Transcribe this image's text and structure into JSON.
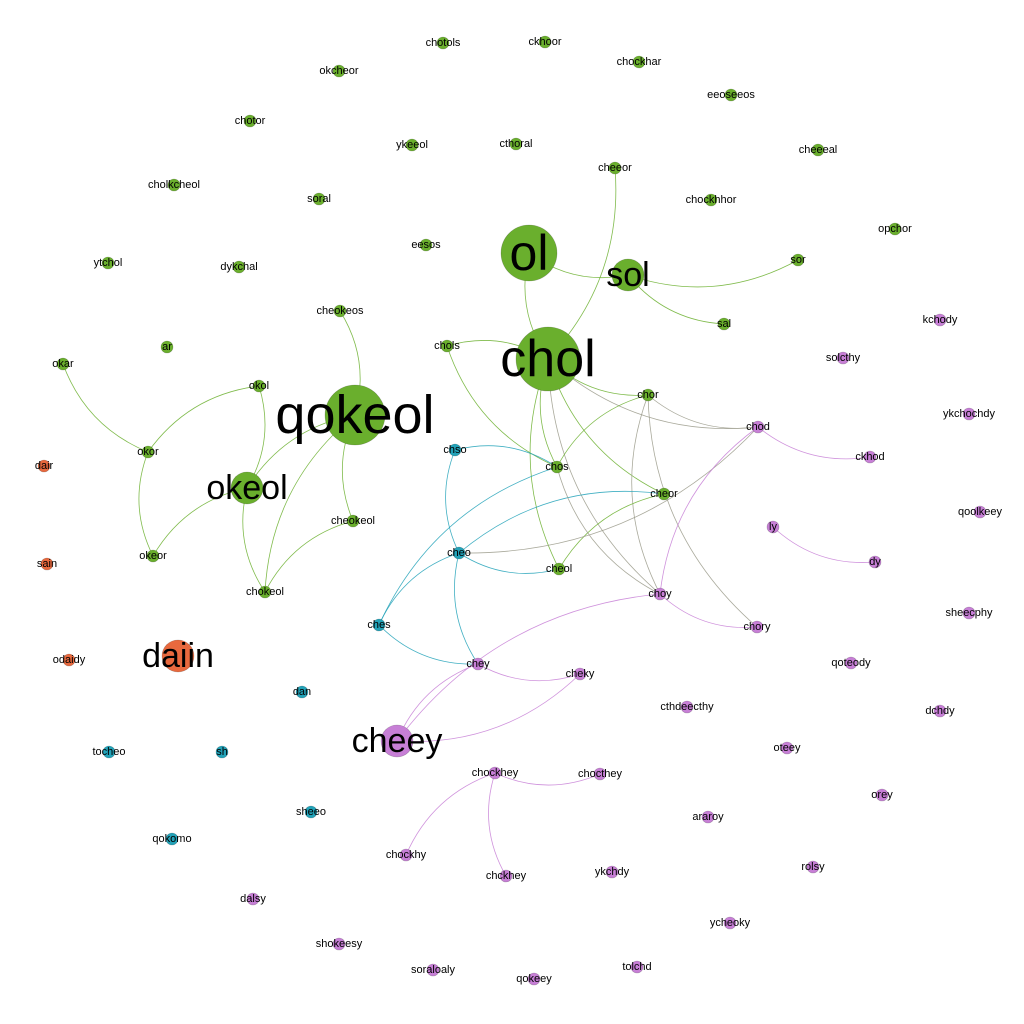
{
  "colors": {
    "green": "#6aaf2d",
    "orange": "#e8693e",
    "teal": "#22a2b8",
    "violet": "#c77fd6",
    "edge_green": "#6aaf2d",
    "edge_teal": "#22a2b8",
    "edge_violet": "#c77fd6",
    "edge_grey": "#9a9a8a"
  },
  "nodes": [
    {
      "id": "chotols",
      "label": "chotols",
      "group": "green"
    },
    {
      "id": "ckhoor",
      "label": "ckhoor",
      "group": "green"
    },
    {
      "id": "okcheor",
      "label": "okcheor",
      "group": "green"
    },
    {
      "id": "chockhar",
      "label": "chockhar",
      "group": "green"
    },
    {
      "id": "eeoseeos",
      "label": "eeoseeos",
      "group": "green"
    },
    {
      "id": "chotor",
      "label": "chotor",
      "group": "green"
    },
    {
      "id": "ykeeol",
      "label": "ykeeol",
      "group": "green"
    },
    {
      "id": "cthoral",
      "label": "cthoral",
      "group": "green"
    },
    {
      "id": "cheeeal",
      "label": "cheeeal",
      "group": "green"
    },
    {
      "id": "cheeor",
      "label": "cheeor",
      "group": "green"
    },
    {
      "id": "cholkcheol",
      "label": "cholkcheol",
      "group": "green"
    },
    {
      "id": "soral",
      "label": "soral",
      "group": "green"
    },
    {
      "id": "chockhhor",
      "label": "chockhhor",
      "group": "green"
    },
    {
      "id": "opchor",
      "label": "opchor",
      "group": "green"
    },
    {
      "id": "eesos",
      "label": "eesos",
      "group": "green"
    },
    {
      "id": "ol",
      "label": "ol",
      "group": "green"
    },
    {
      "id": "ytchol",
      "label": "ytchol",
      "group": "green"
    },
    {
      "id": "dykchal",
      "label": "dykchal",
      "group": "green"
    },
    {
      "id": "sol",
      "label": "sol",
      "group": "green"
    },
    {
      "id": "sor",
      "label": "sor",
      "group": "green"
    },
    {
      "id": "cheokeos",
      "label": "cheokeos",
      "group": "green"
    },
    {
      "id": "sal",
      "label": "sal",
      "group": "green"
    },
    {
      "id": "kchody",
      "label": "kchody",
      "group": "violet"
    },
    {
      "id": "ar",
      "label": "ar",
      "group": "green"
    },
    {
      "id": "chols",
      "label": "chols",
      "group": "green"
    },
    {
      "id": "chol",
      "label": "chol",
      "group": "green"
    },
    {
      "id": "solcthy",
      "label": "solcthy",
      "group": "violet"
    },
    {
      "id": "okar",
      "label": "okar",
      "group": "green"
    },
    {
      "id": "okol",
      "label": "okol",
      "group": "green"
    },
    {
      "id": "chor",
      "label": "chor",
      "group": "green"
    },
    {
      "id": "ykchochdy",
      "label": "ykchochdy",
      "group": "violet"
    },
    {
      "id": "qokeol",
      "label": "qokeol",
      "group": "green"
    },
    {
      "id": "chod",
      "label": "chod",
      "group": "violet"
    },
    {
      "id": "okor",
      "label": "okor",
      "group": "green"
    },
    {
      "id": "chso",
      "label": "chso",
      "group": "teal"
    },
    {
      "id": "ckhod",
      "label": "ckhod",
      "group": "violet"
    },
    {
      "id": "dair",
      "label": "dair",
      "group": "orange"
    },
    {
      "id": "chos",
      "label": "chos",
      "group": "green"
    },
    {
      "id": "okeol",
      "label": "okeol",
      "group": "green"
    },
    {
      "id": "cheor",
      "label": "cheor",
      "group": "green"
    },
    {
      "id": "qoolkeey",
      "label": "qoolkeey",
      "group": "violet"
    },
    {
      "id": "cheokeol",
      "label": "cheokeol",
      "group": "green"
    },
    {
      "id": "ly",
      "label": "ly",
      "group": "violet"
    },
    {
      "id": "cheo",
      "label": "cheo",
      "group": "teal"
    },
    {
      "id": "okeor",
      "label": "okeor",
      "group": "green"
    },
    {
      "id": "dy",
      "label": "dy",
      "group": "violet"
    },
    {
      "id": "sain",
      "label": "sain",
      "group": "orange"
    },
    {
      "id": "cheol",
      "label": "cheol",
      "group": "green"
    },
    {
      "id": "chokeol",
      "label": "chokeol",
      "group": "green"
    },
    {
      "id": "choy",
      "label": "choy",
      "group": "violet"
    },
    {
      "id": "sheecphy",
      "label": "sheecphy",
      "group": "violet"
    },
    {
      "id": "ches",
      "label": "ches",
      "group": "teal"
    },
    {
      "id": "chory",
      "label": "chory",
      "group": "violet"
    },
    {
      "id": "daiin",
      "label": "daiin",
      "group": "orange"
    },
    {
      "id": "odaidy",
      "label": "odaidy",
      "group": "orange"
    },
    {
      "id": "chey",
      "label": "chey",
      "group": "violet"
    },
    {
      "id": "qoteody",
      "label": "qoteody",
      "group": "violet"
    },
    {
      "id": "cheky",
      "label": "cheky",
      "group": "violet"
    },
    {
      "id": "dan",
      "label": "dan",
      "group": "teal"
    },
    {
      "id": "cthdeecthy",
      "label": "cthdeecthy",
      "group": "violet"
    },
    {
      "id": "dchdy",
      "label": "dchdy",
      "group": "violet"
    },
    {
      "id": "cheey",
      "label": "cheey",
      "group": "violet"
    },
    {
      "id": "tocheo",
      "label": "tocheo",
      "group": "teal"
    },
    {
      "id": "sh",
      "label": "sh",
      "group": "teal"
    },
    {
      "id": "oteey",
      "label": "oteey",
      "group": "violet"
    },
    {
      "id": "chockhey",
      "label": "chockhey",
      "group": "violet"
    },
    {
      "id": "chocthey",
      "label": "chocthey",
      "group": "violet"
    },
    {
      "id": "orey",
      "label": "orey",
      "group": "violet"
    },
    {
      "id": "sheeo",
      "label": "sheeo",
      "group": "teal"
    },
    {
      "id": "araroy",
      "label": "araroy",
      "group": "violet"
    },
    {
      "id": "qokomo",
      "label": "qokomo",
      "group": "teal"
    },
    {
      "id": "chockhy",
      "label": "chockhy",
      "group": "violet"
    },
    {
      "id": "ykchdy",
      "label": "ykchdy",
      "group": "violet"
    },
    {
      "id": "rolsy",
      "label": "rolsy",
      "group": "violet"
    },
    {
      "id": "chckhey",
      "label": "chckhey",
      "group": "violet"
    },
    {
      "id": "dalsy",
      "label": "dalsy",
      "group": "violet"
    },
    {
      "id": "ycheoky",
      "label": "ycheoky",
      "group": "violet"
    },
    {
      "id": "shokeesy",
      "label": "shokeesy",
      "group": "violet"
    },
    {
      "id": "soraloaly",
      "label": "soraloaly",
      "group": "violet"
    },
    {
      "id": "qokeey",
      "label": "qokeey",
      "group": "violet"
    },
    {
      "id": "tolchd",
      "label": "tolchd",
      "group": "violet"
    }
  ],
  "edges": [
    {
      "source": "ol",
      "target": "sol",
      "color": "edge_green"
    },
    {
      "source": "ol",
      "target": "chol",
      "color": "edge_green"
    },
    {
      "source": "sol",
      "target": "sor",
      "color": "edge_green"
    },
    {
      "source": "sol",
      "target": "sal",
      "color": "edge_green"
    },
    {
      "source": "chol",
      "target": "cheeor",
      "color": "edge_green"
    },
    {
      "source": "chol",
      "target": "chols",
      "color": "edge_green"
    },
    {
      "source": "chol",
      "target": "chos",
      "color": "edge_green"
    },
    {
      "source": "chol",
      "target": "chor",
      "color": "edge_green"
    },
    {
      "source": "chol",
      "target": "cheol",
      "color": "edge_green"
    },
    {
      "source": "chol",
      "target": "cheor",
      "color": "edge_green"
    },
    {
      "source": "chol",
      "target": "chod",
      "color": "edge_grey"
    },
    {
      "source": "chol",
      "target": "choy",
      "color": "edge_grey"
    },
    {
      "source": "chols",
      "target": "chos",
      "color": "edge_green"
    },
    {
      "source": "chor",
      "target": "chos",
      "color": "edge_green"
    },
    {
      "source": "chor",
      "target": "chod",
      "color": "edge_grey"
    },
    {
      "source": "chor",
      "target": "choy",
      "color": "edge_grey"
    },
    {
      "source": "chor",
      "target": "chory",
      "color": "edge_grey"
    },
    {
      "source": "cheor",
      "target": "cheo",
      "color": "edge_teal"
    },
    {
      "source": "cheor",
      "target": "cheol",
      "color": "edge_green"
    },
    {
      "source": "chos",
      "target": "chso",
      "color": "edge_teal"
    },
    {
      "source": "chos",
      "target": "ches",
      "color": "edge_teal"
    },
    {
      "source": "chos",
      "target": "choy",
      "color": "edge_grey"
    },
    {
      "source": "chso",
      "target": "cheo",
      "color": "edge_teal"
    },
    {
      "source": "cheo",
      "target": "cheol",
      "color": "edge_teal"
    },
    {
      "source": "cheo",
      "target": "ches",
      "color": "edge_teal"
    },
    {
      "source": "cheo",
      "target": "chey",
      "color": "edge_teal"
    },
    {
      "source": "cheo",
      "target": "chod",
      "color": "edge_grey"
    },
    {
      "source": "ches",
      "target": "chey",
      "color": "edge_teal"
    },
    {
      "source": "qokeol",
      "target": "okeol",
      "color": "edge_green"
    },
    {
      "source": "qokeol",
      "target": "cheokeos",
      "color": "edge_green"
    },
    {
      "source": "qokeol",
      "target": "cheokeol",
      "color": "edge_green"
    },
    {
      "source": "qokeol",
      "target": "chokeol",
      "color": "edge_green"
    },
    {
      "source": "okeol",
      "target": "okol",
      "color": "edge_green"
    },
    {
      "source": "okeol",
      "target": "chokeol",
      "color": "edge_green"
    },
    {
      "source": "okeol",
      "target": "okeor",
      "color": "edge_green"
    },
    {
      "source": "okol",
      "target": "okor",
      "color": "edge_green"
    },
    {
      "source": "okar",
      "target": "okor",
      "color": "edge_green"
    },
    {
      "source": "okor",
      "target": "okeor",
      "color": "edge_green"
    },
    {
      "source": "cheokeol",
      "target": "chokeol",
      "color": "edge_green"
    },
    {
      "source": "chod",
      "target": "ckhod",
      "color": "edge_violet"
    },
    {
      "source": "chod",
      "target": "choy",
      "color": "edge_violet"
    },
    {
      "source": "ly",
      "target": "dy",
      "color": "edge_violet"
    },
    {
      "source": "choy",
      "target": "chory",
      "color": "edge_violet"
    },
    {
      "source": "choy",
      "target": "cheey",
      "color": "edge_violet"
    },
    {
      "source": "chey",
      "target": "cheky",
      "color": "edge_violet"
    },
    {
      "source": "chey",
      "target": "cheey",
      "color": "edge_violet"
    },
    {
      "source": "cheey",
      "target": "cheky",
      "color": "edge_violet"
    },
    {
      "source": "chockhey",
      "target": "chocthey",
      "color": "edge_violet"
    },
    {
      "source": "chockhey",
      "target": "chockhy",
      "color": "edge_violet"
    },
    {
      "source": "chockhey",
      "target": "chckhey",
      "color": "edge_violet"
    }
  ]
}
